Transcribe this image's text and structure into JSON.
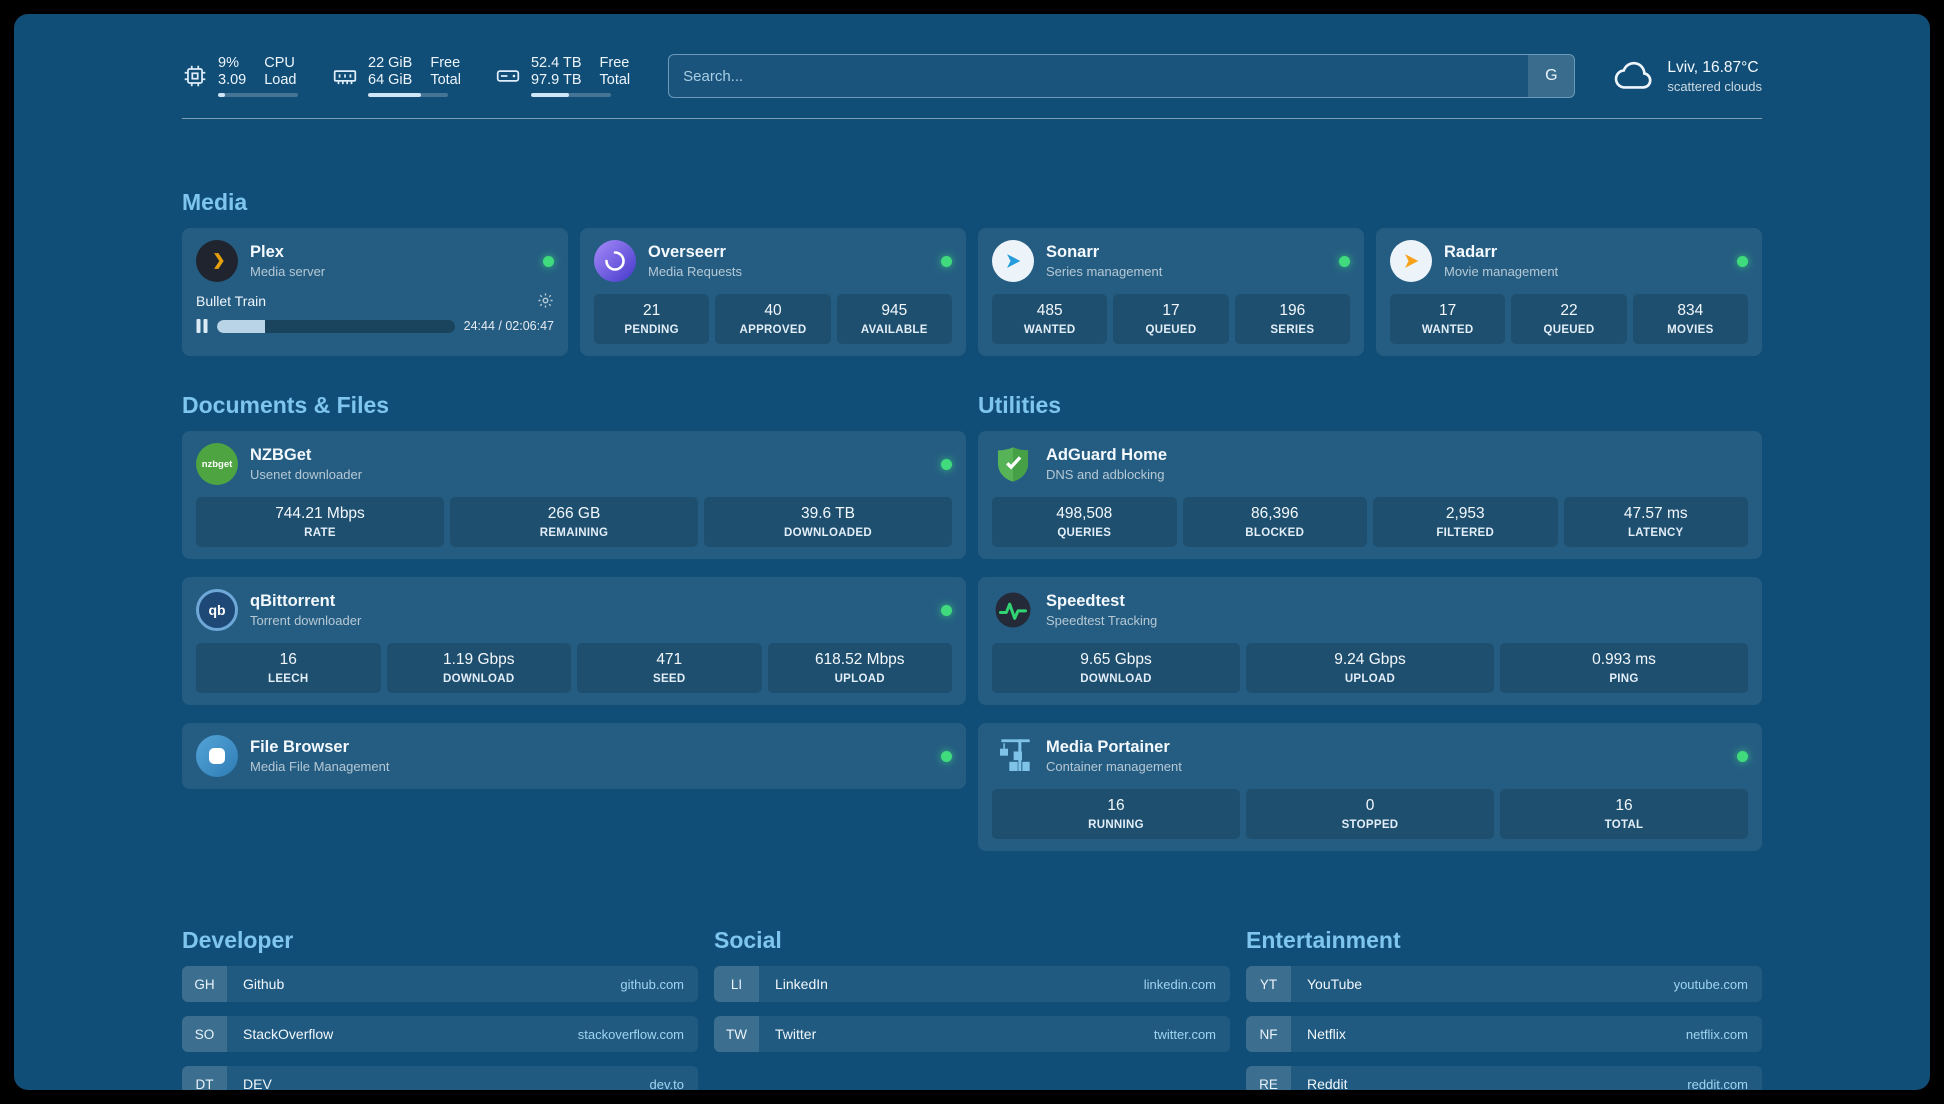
{
  "topbar": {
    "cpu": {
      "value1": "9%",
      "value2": "3.09",
      "label1": "CPU",
      "label2": "Load",
      "progress": 9
    },
    "memory": {
      "value1": "22 GiB",
      "value2": "64 GiB",
      "label1": "Free",
      "label2": "Total",
      "progress": 66
    },
    "disk": {
      "value1": "52.4 TB",
      "value2": "97.9 TB",
      "label1": "Free",
      "label2": "Total",
      "progress": 47
    },
    "search": {
      "placeholder": "Search...",
      "engine_label": "G"
    },
    "weather": {
      "location": "Lviv, 16.87°C",
      "condition": "scattered clouds"
    }
  },
  "media": {
    "heading": "Media",
    "plex": {
      "name": "Plex",
      "subtitle": "Media server",
      "now_playing": "Bullet Train",
      "time": "24:44 / 02:06:47",
      "progress": 20
    },
    "overseerr": {
      "name": "Overseerr",
      "subtitle": "Media Requests",
      "stats": [
        {
          "value": "21",
          "label": "PENDING"
        },
        {
          "value": "40",
          "label": "APPROVED"
        },
        {
          "value": "945",
          "label": "AVAILABLE"
        }
      ]
    },
    "sonarr": {
      "name": "Sonarr",
      "subtitle": "Series management",
      "stats": [
        {
          "value": "485",
          "label": "WANTED"
        },
        {
          "value": "17",
          "label": "QUEUED"
        },
        {
          "value": "196",
          "label": "SERIES"
        }
      ]
    },
    "radarr": {
      "name": "Radarr",
      "subtitle": "Movie management",
      "stats": [
        {
          "value": "17",
          "label": "WANTED"
        },
        {
          "value": "22",
          "label": "QUEUED"
        },
        {
          "value": "834",
          "label": "MOVIES"
        }
      ]
    }
  },
  "documents": {
    "heading": "Documents & Files",
    "nzbget": {
      "name": "NZBGet",
      "subtitle": "Usenet downloader",
      "icon_text": "nzbget",
      "stats": [
        {
          "value": "744.21 Mbps",
          "label": "RATE"
        },
        {
          "value": "266 GB",
          "label": "REMAINING"
        },
        {
          "value": "39.6 TB",
          "label": "DOWNLOADED"
        }
      ]
    },
    "qbittorrent": {
      "name": "qBittorrent",
      "subtitle": "Torrent downloader",
      "icon_text": "qb",
      "stats": [
        {
          "value": "16",
          "label": "LEECH"
        },
        {
          "value": "1.19 Gbps",
          "label": "DOWNLOAD"
        },
        {
          "value": "471",
          "label": "SEED"
        },
        {
          "value": "618.52 Mbps",
          "label": "UPLOAD"
        }
      ]
    },
    "filebrowser": {
      "name": "File Browser",
      "subtitle": "Media File Management"
    }
  },
  "utilities": {
    "heading": "Utilities",
    "adguard": {
      "name": "AdGuard Home",
      "subtitle": "DNS and adblocking",
      "stats": [
        {
          "value": "498,508",
          "label": "QUERIES"
        },
        {
          "value": "86,396",
          "label": "BLOCKED"
        },
        {
          "value": "2,953",
          "label": "FILTERED"
        },
        {
          "value": "47.57 ms",
          "label": "LATENCY"
        }
      ]
    },
    "speedtest": {
      "name": "Speedtest",
      "subtitle": "Speedtest Tracking",
      "stats": [
        {
          "value": "9.65 Gbps",
          "label": "DOWNLOAD"
        },
        {
          "value": "9.24 Gbps",
          "label": "UPLOAD"
        },
        {
          "value": "0.993 ms",
          "label": "PING"
        }
      ]
    },
    "portainer": {
      "name": "Media Portainer",
      "subtitle": "Container management",
      "stats": [
        {
          "value": "16",
          "label": "RUNNING"
        },
        {
          "value": "0",
          "label": "STOPPED"
        },
        {
          "value": "16",
          "label": "TOTAL"
        }
      ]
    }
  },
  "bookmarks": {
    "developer": {
      "heading": "Developer",
      "items": [
        {
          "abbr": "GH",
          "name": "Github",
          "url": "github.com"
        },
        {
          "abbr": "SO",
          "name": "StackOverflow",
          "url": "stackoverflow.com"
        },
        {
          "abbr": "DT",
          "name": "DEV",
          "url": "dev.to"
        }
      ]
    },
    "social": {
      "heading": "Social",
      "items": [
        {
          "abbr": "LI",
          "name": "LinkedIn",
          "url": "linkedin.com"
        },
        {
          "abbr": "TW",
          "name": "Twitter",
          "url": "twitter.com"
        }
      ]
    },
    "entertainment": {
      "heading": "Entertainment",
      "items": [
        {
          "abbr": "YT",
          "name": "YouTube",
          "url": "youtube.com"
        },
        {
          "abbr": "NF",
          "name": "Netflix",
          "url": "netflix.com"
        },
        {
          "abbr": "RE",
          "name": "Reddit",
          "url": "reddit.com"
        }
      ]
    }
  }
}
